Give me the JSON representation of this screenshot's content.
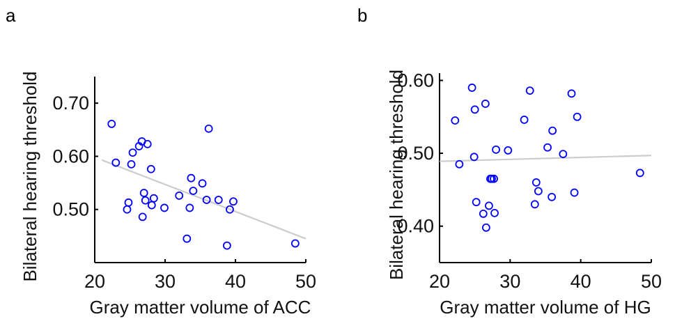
{
  "chart_data": [
    {
      "type": "scatter",
      "panel": "a",
      "xlabel": "Gray matter volume of ACC",
      "ylabel": "Bilateral hearing threshold",
      "xlim": [
        20,
        50
      ],
      "ylim": [
        0.4,
        0.75
      ],
      "xticks": [
        20,
        30,
        40,
        50
      ],
      "yticks": [
        0.5,
        0.6,
        0.7
      ],
      "ytick_labels": [
        "0.50",
        "0.60",
        "0.70"
      ],
      "xtick_labels": [
        "20",
        "30",
        "40",
        "50"
      ],
      "grid": false,
      "marker_color": "#0000ff",
      "fit_color": "#cccccc",
      "fit_line": {
        "x": [
          21,
          50
        ],
        "y": [
          0.593,
          0.445
        ]
      },
      "x": [
        22.4,
        23.0,
        24.6,
        24.8,
        25.2,
        25.4,
        26.3,
        26.7,
        26.8,
        27.0,
        27.2,
        27.5,
        28.0,
        28.1,
        28.4,
        29.9,
        32.0,
        33.1,
        33.5,
        33.7,
        34.0,
        35.3,
        35.9,
        36.2,
        37.6,
        38.8,
        39.2,
        39.7,
        48.5
      ],
      "y": [
        0.661,
        0.588,
        0.5,
        0.513,
        0.585,
        0.607,
        0.619,
        0.628,
        0.486,
        0.531,
        0.517,
        0.623,
        0.576,
        0.508,
        0.521,
        0.503,
        0.526,
        0.445,
        0.503,
        0.559,
        0.535,
        0.549,
        0.518,
        0.652,
        0.518,
        0.432,
        0.5,
        0.515,
        0.436
      ]
    },
    {
      "type": "scatter",
      "panel": "b",
      "xlabel": "Gray matter volume of HG",
      "ylabel": "Bilateral hearing threshold",
      "xlim": [
        20,
        50
      ],
      "ylim": [
        0.35,
        0.61
      ],
      "xticks": [
        20,
        30,
        40,
        50
      ],
      "yticks": [
        0.4,
        0.5,
        0.6
      ],
      "ytick_labels": [
        "0.40",
        "0.50",
        "0.60"
      ],
      "xtick_labels": [
        "20",
        "30",
        "40",
        "50"
      ],
      "grid": false,
      "marker_color": "#0000ff",
      "fit_color": "#cccccc",
      "fit_line": {
        "x": [
          20,
          50
        ],
        "y": [
          0.489,
          0.497
        ]
      },
      "x": [
        22.2,
        22.8,
        24.6,
        24.9,
        25.0,
        25.2,
        26.2,
        26.5,
        26.6,
        27.0,
        27.2,
        27.4,
        27.7,
        27.8,
        28.0,
        29.7,
        32.0,
        32.8,
        33.5,
        33.7,
        34.0,
        35.3,
        35.9,
        36.0,
        37.5,
        38.7,
        39.1,
        39.5,
        48.4
      ],
      "y": [
        0.545,
        0.485,
        0.59,
        0.495,
        0.56,
        0.433,
        0.417,
        0.568,
        0.398,
        0.428,
        0.465,
        0.465,
        0.465,
        0.418,
        0.505,
        0.504,
        0.546,
        0.586,
        0.43,
        0.46,
        0.448,
        0.508,
        0.44,
        0.531,
        0.499,
        0.582,
        0.446,
        0.55,
        0.473
      ]
    }
  ]
}
